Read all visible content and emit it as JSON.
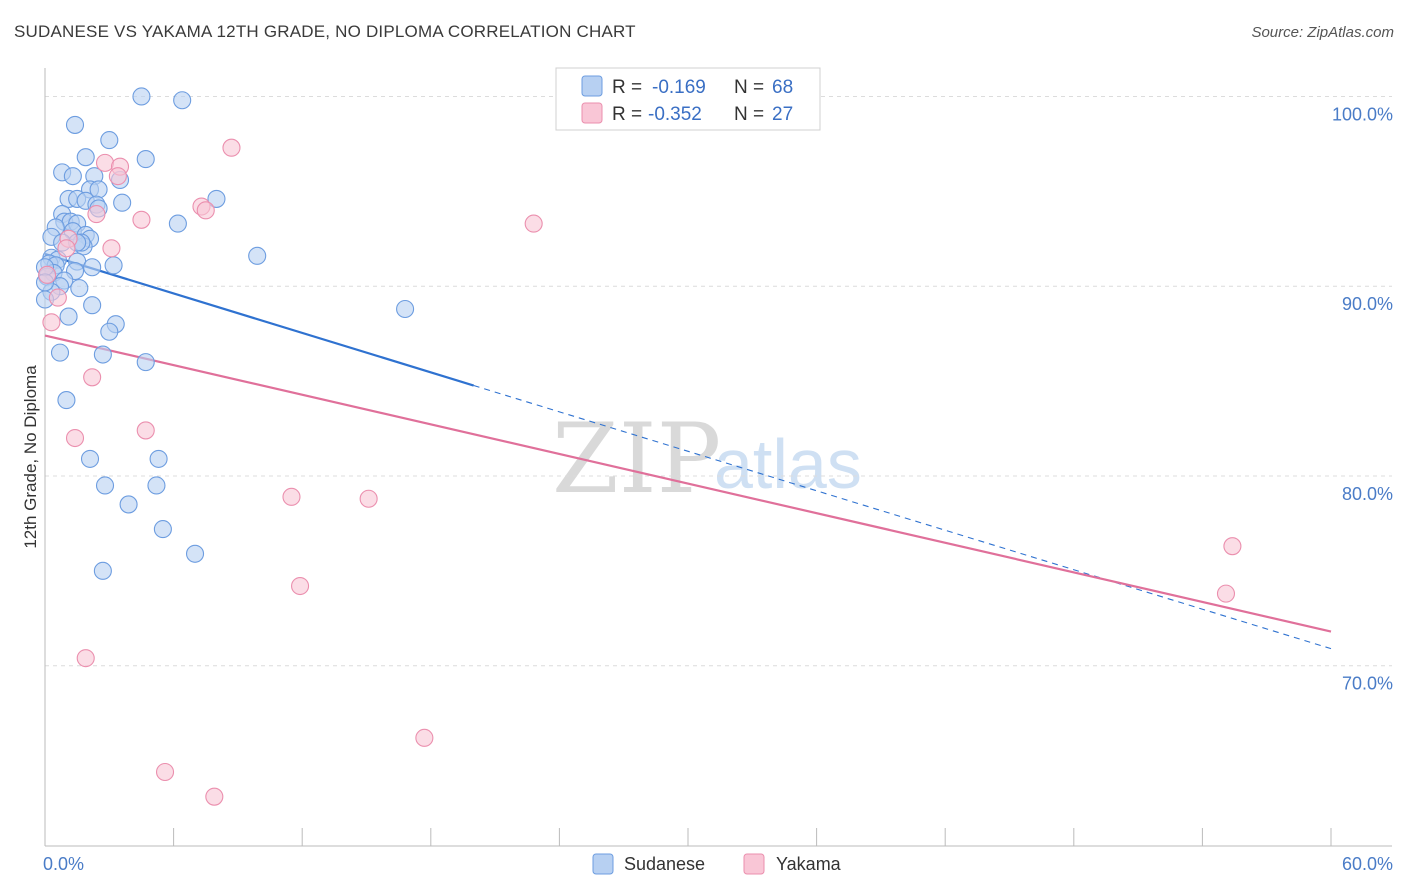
{
  "header": {
    "title": "SUDANESE VS YAKAMA 12TH GRADE, NO DIPLOMA CORRELATION CHART",
    "source": "Source: ZipAtlas.com"
  },
  "watermark": {
    "zip": "ZIP",
    "atlas": "atlas"
  },
  "colors": {
    "sudanese_fill": "#b7d0f2",
    "sudanese_stroke": "#6d9de0",
    "sudanese_line": "#2f72d0",
    "yakama_fill": "#f9c6d6",
    "yakama_stroke": "#eb8fae",
    "yakama_line": "#e0709a",
    "grid": "#dcdcdc",
    "tick_label": "#4a7cc7"
  },
  "legend": {
    "rows": [
      {
        "r_label": "R =",
        "r_value": "-0.169",
        "n_label": "N =",
        "n_value": "68"
      },
      {
        "r_label": "R =",
        "r_value": "-0.352",
        "n_label": "N =",
        "n_value": "27"
      }
    ]
  },
  "chart_data": {
    "type": "scatter",
    "title": "SUDANESE VS YAKAMA 12TH GRADE, NO DIPLOMA CORRELATION CHART",
    "xlabel": "",
    "ylabel": "12th Grade, No Diploma",
    "xlim": [
      0,
      60
    ],
    "ylim": [
      60.5,
      101.5
    ],
    "x_ticks": [
      "0.0%",
      "60.0%"
    ],
    "y_ticks": [
      {
        "value": 100,
        "label": "100.0%"
      },
      {
        "value": 90,
        "label": "90.0%"
      },
      {
        "value": 80,
        "label": "80.0%"
      },
      {
        "value": 70,
        "label": "70.0%"
      }
    ],
    "grid": true,
    "legend_position": "top-center",
    "series": [
      {
        "name": "Sudanese",
        "r": -0.169,
        "n": 68,
        "trend": {
          "x0": 0,
          "y0": 91.7,
          "x1": 60,
          "y1": 70.9,
          "solid_until_x": 20
        },
        "points": [
          [
            4.5,
            100.0
          ],
          [
            6.4,
            99.8
          ],
          [
            1.4,
            98.5
          ],
          [
            3.0,
            97.7
          ],
          [
            1.9,
            96.8
          ],
          [
            4.7,
            96.7
          ],
          [
            0.8,
            96.0
          ],
          [
            2.3,
            95.8
          ],
          [
            1.3,
            95.8
          ],
          [
            3.5,
            95.6
          ],
          [
            2.1,
            95.1
          ],
          [
            2.5,
            95.1
          ],
          [
            1.1,
            94.6
          ],
          [
            1.5,
            94.6
          ],
          [
            8.0,
            94.6
          ],
          [
            1.9,
            94.5
          ],
          [
            3.6,
            94.4
          ],
          [
            2.4,
            94.3
          ],
          [
            2.5,
            94.1
          ],
          [
            0.8,
            93.8
          ],
          [
            0.9,
            93.4
          ],
          [
            1.2,
            93.4
          ],
          [
            1.5,
            93.3
          ],
          [
            6.2,
            93.3
          ],
          [
            0.5,
            93.1
          ],
          [
            1.3,
            92.9
          ],
          [
            1.9,
            92.7
          ],
          [
            0.3,
            92.6
          ],
          [
            2.1,
            92.5
          ],
          [
            0.8,
            92.3
          ],
          [
            1.8,
            92.1
          ],
          [
            1.7,
            92.3
          ],
          [
            1.5,
            92.3
          ],
          [
            9.9,
            91.6
          ],
          [
            0.3,
            91.5
          ],
          [
            0.6,
            91.4
          ],
          [
            0.2,
            91.2
          ],
          [
            1.5,
            91.3
          ],
          [
            0.5,
            91.1
          ],
          [
            3.2,
            91.1
          ],
          [
            2.2,
            91.0
          ],
          [
            1.4,
            90.8
          ],
          [
            0.4,
            90.7
          ],
          [
            0.1,
            90.5
          ],
          [
            0.9,
            90.3
          ],
          [
            0.7,
            90.0
          ],
          [
            1.6,
            89.9
          ],
          [
            0.3,
            89.7
          ],
          [
            2.2,
            89.0
          ],
          [
            16.8,
            88.8
          ],
          [
            1.1,
            88.4
          ],
          [
            3.3,
            88.0
          ],
          [
            3.0,
            87.6
          ],
          [
            0.7,
            86.5
          ],
          [
            2.7,
            86.4
          ],
          [
            4.7,
            86.0
          ],
          [
            1.0,
            84.0
          ],
          [
            2.1,
            80.9
          ],
          [
            5.3,
            80.9
          ],
          [
            2.8,
            79.5
          ],
          [
            5.2,
            79.5
          ],
          [
            3.9,
            78.5
          ],
          [
            5.5,
            77.2
          ],
          [
            7.0,
            75.9
          ],
          [
            2.7,
            75.0
          ],
          [
            0.0,
            91.0
          ],
          [
            0.0,
            90.2
          ],
          [
            0.0,
            89.3
          ]
        ]
      },
      {
        "name": "Yakama",
        "r": -0.352,
        "n": 27,
        "trend": {
          "x0": 0,
          "y0": 87.4,
          "x1": 60,
          "y1": 71.8
        },
        "points": [
          [
            8.7,
            97.3
          ],
          [
            2.8,
            96.5
          ],
          [
            3.5,
            96.3
          ],
          [
            3.4,
            95.8
          ],
          [
            7.3,
            94.2
          ],
          [
            7.5,
            94.0
          ],
          [
            2.4,
            93.8
          ],
          [
            4.5,
            93.5
          ],
          [
            22.8,
            93.3
          ],
          [
            1.1,
            92.5
          ],
          [
            3.1,
            92.0
          ],
          [
            1.0,
            92.0
          ],
          [
            0.6,
            89.4
          ],
          [
            0.3,
            88.1
          ],
          [
            2.2,
            85.2
          ],
          [
            4.7,
            82.4
          ],
          [
            1.4,
            82.0
          ],
          [
            11.5,
            78.9
          ],
          [
            15.1,
            78.8
          ],
          [
            11.9,
            74.2
          ],
          [
            55.4,
            76.3
          ],
          [
            55.1,
            73.8
          ],
          [
            1.9,
            70.4
          ],
          [
            17.7,
            66.2
          ],
          [
            5.6,
            64.4
          ],
          [
            7.9,
            63.1
          ],
          [
            0.1,
            90.6
          ]
        ]
      }
    ]
  }
}
